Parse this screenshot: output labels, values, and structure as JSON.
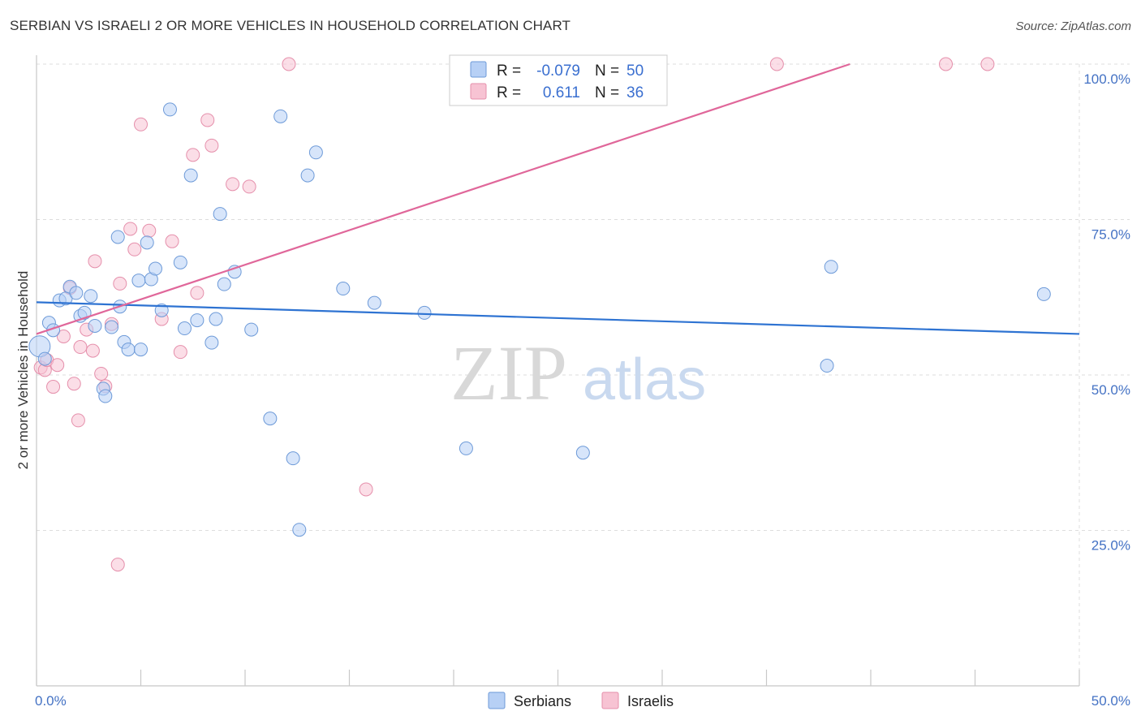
{
  "title": "SERBIAN VS ISRAELI 2 OR MORE VEHICLES IN HOUSEHOLD CORRELATION CHART",
  "source": "Source: ZipAtlas.com",
  "watermark": {
    "zip": "ZIP",
    "atlas": "atlas"
  },
  "colors": {
    "serbians_fill": "#b7d0f5",
    "serbians_stroke": "#6d9ad8",
    "serbians_line": "#2e73d2",
    "israelis_fill": "#f7c3d3",
    "israelis_stroke": "#e58fab",
    "israelis_line": "#e0679a",
    "grid": "#dddddd",
    "tick_text": "#4472c4"
  },
  "legend": {
    "rows": [
      {
        "r_label": "R = ",
        "r_value": "-0.079",
        "n_label": "N = ",
        "n_value": "50"
      },
      {
        "r_label": "R = ",
        "r_value": "0.611",
        "n_label": "N = ",
        "n_value": "36"
      }
    ]
  },
  "chart_data": {
    "type": "scatter",
    "title": "SERBIAN VS ISRAELI 2 OR MORE VEHICLES IN HOUSEHOLD CORRELATION CHART",
    "xlabel": "",
    "ylabel": "2 or more Vehicles in Household",
    "xlim": [
      0,
      50
    ],
    "ylim": [
      0,
      100
    ],
    "x_tick_labels": [
      "0.0%",
      "50.0%"
    ],
    "y_ticks": [
      {
        "value": 100,
        "label": "100.0%"
      },
      {
        "value": 75,
        "label": "75.0%"
      },
      {
        "value": 50,
        "label": "50.0%"
      },
      {
        "value": 25,
        "label": "25.0%"
      }
    ],
    "grid": true,
    "legend_position": "top-center",
    "series": [
      {
        "name": "Serbians",
        "r": -0.079,
        "n": 50,
        "trend": {
          "x": [
            0,
            50
          ],
          "y": [
            61.7,
            56.6
          ]
        },
        "points": [
          [
            0.15,
            54.6
          ],
          [
            0.4,
            52.6
          ],
          [
            0.6,
            58.4
          ],
          [
            0.8,
            57.2
          ],
          [
            1.1,
            62
          ],
          [
            1.4,
            62.3
          ],
          [
            1.6,
            64.2
          ],
          [
            1.9,
            63.2
          ],
          [
            2.1,
            59.5
          ],
          [
            2.3,
            60
          ],
          [
            2.6,
            62.7
          ],
          [
            2.8,
            57.9
          ],
          [
            3.2,
            47.8
          ],
          [
            3.3,
            46.6
          ],
          [
            3.6,
            57.7
          ],
          [
            3.9,
            72.2
          ],
          [
            4.0,
            61
          ],
          [
            4.2,
            55.3
          ],
          [
            4.4,
            54.1
          ],
          [
            4.9,
            65.2
          ],
          [
            5.0,
            54.1
          ],
          [
            5.3,
            71.3
          ],
          [
            5.5,
            65.4
          ],
          [
            5.7,
            67.1
          ],
          [
            6.0,
            60.4
          ],
          [
            6.4,
            92.7
          ],
          [
            6.9,
            68.1
          ],
          [
            7.1,
            57.5
          ],
          [
            7.4,
            82.1
          ],
          [
            7.7,
            58.8
          ],
          [
            8.4,
            55.2
          ],
          [
            8.6,
            59
          ],
          [
            8.8,
            75.9
          ],
          [
            9.0,
            64.6
          ],
          [
            9.5,
            66.6
          ],
          [
            10.3,
            57.3
          ],
          [
            11.2,
            43
          ],
          [
            11.7,
            91.6
          ],
          [
            12.3,
            36.6
          ],
          [
            12.6,
            25.1
          ],
          [
            13.0,
            82.1
          ],
          [
            13.4,
            85.8
          ],
          [
            14.7,
            63.9
          ],
          [
            16.2,
            61.6
          ],
          [
            18.6,
            60
          ],
          [
            20.6,
            38.2
          ],
          [
            26.2,
            37.5
          ],
          [
            37.9,
            51.5
          ],
          [
            38.1,
            67.4
          ],
          [
            48.3,
            63
          ]
        ]
      },
      {
        "name": "Israelis",
        "r": 0.611,
        "n": 36,
        "trend": {
          "x": [
            0,
            39
          ],
          "y": [
            56.6,
            100
          ]
        },
        "points": [
          [
            0.2,
            51.2
          ],
          [
            0.4,
            50.8
          ],
          [
            0.5,
            52.4
          ],
          [
            0.8,
            48.1
          ],
          [
            1.0,
            51.6
          ],
          [
            1.3,
            56.2
          ],
          [
            1.6,
            64
          ],
          [
            1.8,
            48.6
          ],
          [
            2.0,
            42.7
          ],
          [
            2.1,
            54.5
          ],
          [
            2.4,
            57.3
          ],
          [
            2.7,
            53.9
          ],
          [
            2.8,
            68.3
          ],
          [
            3.1,
            50.2
          ],
          [
            3.3,
            48.2
          ],
          [
            3.6,
            58.2
          ],
          [
            3.9,
            19.5
          ],
          [
            4.0,
            64.7
          ],
          [
            4.5,
            73.5
          ],
          [
            4.7,
            70.2
          ],
          [
            5.0,
            90.3
          ],
          [
            5.4,
            73.2
          ],
          [
            6.0,
            59
          ],
          [
            6.5,
            71.5
          ],
          [
            6.9,
            53.7
          ],
          [
            7.5,
            85.4
          ],
          [
            7.7,
            63.2
          ],
          [
            8.2,
            91
          ],
          [
            8.4,
            86.9
          ],
          [
            9.4,
            80.7
          ],
          [
            10.2,
            80.3
          ],
          [
            12.1,
            100
          ],
          [
            15.8,
            31.6
          ],
          [
            35.5,
            100
          ],
          [
            43.6,
            100
          ],
          [
            45.6,
            100
          ]
        ]
      }
    ]
  }
}
